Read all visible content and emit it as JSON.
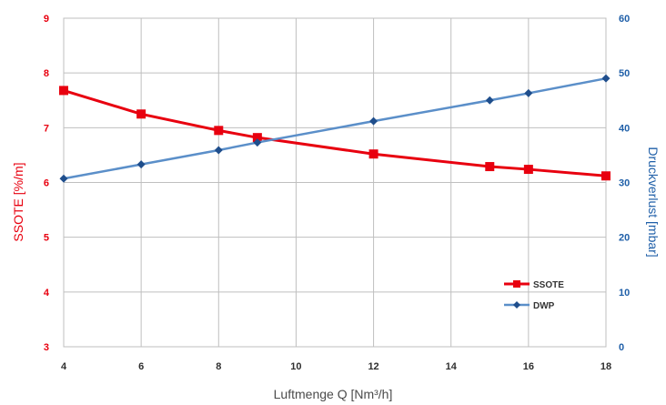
{
  "chart_data": {
    "type": "line",
    "title": "",
    "xlabel": "Luftmenge Q [Nm³/h]",
    "ylabel_left": "SSOTE [%/m]",
    "ylabel_right": "Druckverlust [mbar]",
    "x_ticks": [
      "4",
      "6",
      "8",
      "10",
      "12",
      "14",
      "16",
      "18"
    ],
    "xlim": [
      4,
      18
    ],
    "y_left_ticks": [
      "3",
      "4",
      "5",
      "6",
      "7",
      "8",
      "9"
    ],
    "ylim_left": [
      3,
      9
    ],
    "y_right_ticks": [
      "0",
      "10",
      "20",
      "30",
      "40",
      "50",
      "60"
    ],
    "ylim_right": [
      0,
      60
    ],
    "grid": true,
    "legend_position": "lower-right",
    "colors": {
      "left_axis": "#e8000f",
      "right_axis": "#1f5fa8",
      "series_ssote": "#e8000f",
      "series_dwp": "#5b8fc9",
      "marker_dwp": "#1f4e8c"
    },
    "series": [
      {
        "name": "SSOTE",
        "axis": "left",
        "marker": "square",
        "points": [
          {
            "x": 4,
            "y": 7.68
          },
          {
            "x": 6,
            "y": 7.25
          },
          {
            "x": 8,
            "y": 6.95
          },
          {
            "x": 9,
            "y": 6.82
          },
          {
            "x": 12,
            "y": 6.52
          },
          {
            "x": 15,
            "y": 6.29
          },
          {
            "x": 16,
            "y": 6.24
          },
          {
            "x": 18,
            "y": 6.12
          }
        ]
      },
      {
        "name": "DWP",
        "axis": "right",
        "marker": "diamond",
        "points": [
          {
            "x": 4,
            "y": 30.7
          },
          {
            "x": 6,
            "y": 33.3
          },
          {
            "x": 8,
            "y": 35.9
          },
          {
            "x": 9,
            "y": 37.3
          },
          {
            "x": 12,
            "y": 41.2
          },
          {
            "x": 15,
            "y": 45.0
          },
          {
            "x": 16,
            "y": 46.3
          },
          {
            "x": 18,
            "y": 49.0
          }
        ]
      }
    ]
  }
}
